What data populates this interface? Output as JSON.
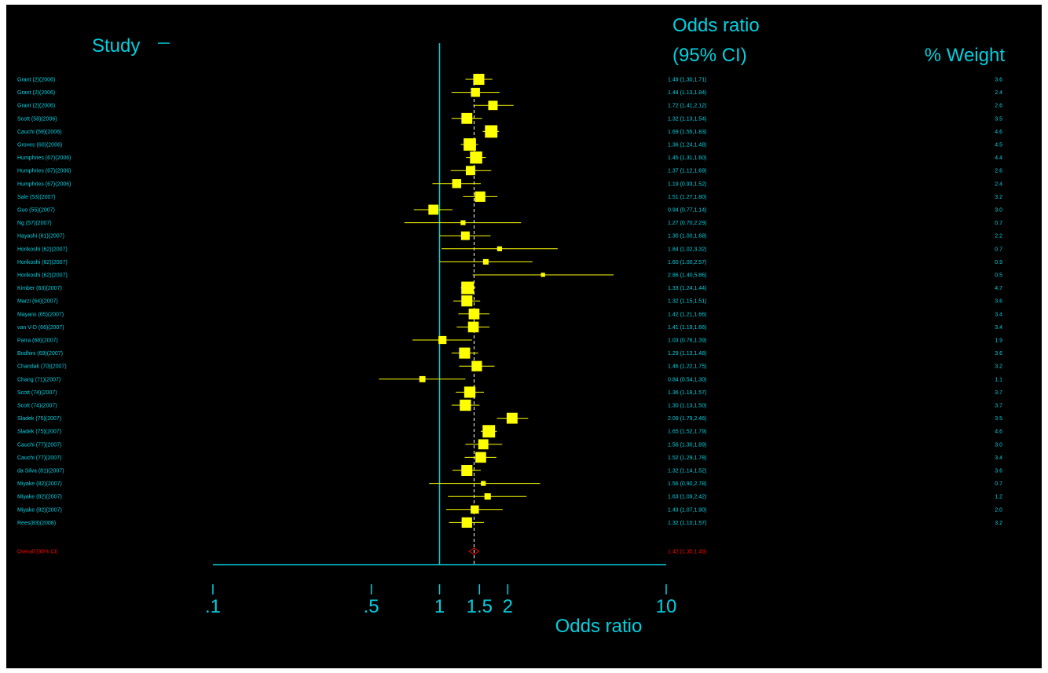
{
  "chart_data": {
    "type": "forest",
    "headers": {
      "study": "Study",
      "or_line1": "Odds ratio",
      "or_line2": "(95% CI)",
      "weight": "% Weight"
    },
    "xlabel": "Odds ratio",
    "xscale": "log",
    "xlim": [
      0.1,
      10
    ],
    "xticks": [
      0.1,
      0.5,
      1,
      1.5,
      2,
      10
    ],
    "xtick_labels": [
      ".1",
      ".5",
      "1",
      "1.5",
      "2",
      "10"
    ],
    "null_line": 1,
    "overall_line": 1.42,
    "studies": [
      {
        "name": "Grant (2)(2006)",
        "or": 1.49,
        "lo": 1.3,
        "hi": 1.71,
        "ci_text": "1.49 (1.30,1.71)",
        "weight": 3.6
      },
      {
        "name": "Grant (2)(2006)",
        "or": 1.44,
        "lo": 1.13,
        "hi": 1.84,
        "ci_text": "1.44 (1.13,1.84)",
        "weight": 2.4
      },
      {
        "name": "Grant (2)(2006)",
        "or": 1.72,
        "lo": 1.41,
        "hi": 2.12,
        "ci_text": "1.72 (1.41,2.12)",
        "weight": 2.6
      },
      {
        "name": "Scott (58)(2006)",
        "or": 1.32,
        "lo": 1.13,
        "hi": 1.54,
        "ci_text": "1.32 (1.13,1.54)",
        "weight": 3.5
      },
      {
        "name": "Cauchi (59)(2006)",
        "or": 1.69,
        "lo": 1.55,
        "hi": 1.83,
        "ci_text": "1.69 (1.55,1.83)",
        "weight": 4.6
      },
      {
        "name": "Groves (60)(2006)",
        "or": 1.36,
        "lo": 1.24,
        "hi": 1.48,
        "ci_text": "1.36 (1.24,1.48)",
        "weight": 4.5
      },
      {
        "name": "Humphries (67)(2006)",
        "or": 1.45,
        "lo": 1.31,
        "hi": 1.6,
        "ci_text": "1.45 (1.31,1.60)",
        "weight": 4.4
      },
      {
        "name": "Humphries (67)(2006)",
        "or": 1.37,
        "lo": 1.12,
        "hi": 1.69,
        "ci_text": "1.37 (1.12,1.69)",
        "weight": 2.6
      },
      {
        "name": "Humphries (67)(2006)",
        "or": 1.19,
        "lo": 0.93,
        "hi": 1.52,
        "ci_text": "1.19 (0.93,1.52)",
        "weight": 2.4
      },
      {
        "name": "Sale (53)(2007)",
        "or": 1.51,
        "lo": 1.27,
        "hi": 1.8,
        "ci_text": "1.51 (1.27,1.80)",
        "weight": 3.2
      },
      {
        "name": "Guo (55)(2007)",
        "or": 0.94,
        "lo": 0.77,
        "hi": 1.14,
        "ci_text": "0.94 (0.77,1.14)",
        "weight": 3.0
      },
      {
        "name": "Ng (57)(2007)",
        "or": 1.27,
        "lo": 0.7,
        "hi": 2.29,
        "ci_text": "1.27 (0.70,2.29)",
        "weight": 0.7
      },
      {
        "name": "Hayashi (61)(2007)",
        "or": 1.3,
        "lo": 1.0,
        "hi": 1.68,
        "ci_text": "1.30 (1.00,1.68)",
        "weight": 2.2
      },
      {
        "name": "Horikoshi (62)(2007)",
        "or": 1.84,
        "lo": 1.02,
        "hi": 3.32,
        "ci_text": "1.84 (1.02,3.32)",
        "weight": 0.7
      },
      {
        "name": "Horikoshi (62)(2007)",
        "or": 1.6,
        "lo": 1.0,
        "hi": 2.57,
        "ci_text": "1.60 (1.00,2.57)",
        "weight": 0.9
      },
      {
        "name": "Horikoshi (62)(2007)",
        "or": 2.86,
        "lo": 1.4,
        "hi": 5.86,
        "ci_text": "2.86 (1.40,5.86)",
        "weight": 0.5
      },
      {
        "name": "Kimber (63)(2007)",
        "or": 1.33,
        "lo": 1.24,
        "hi": 1.44,
        "ci_text": "1.33 (1.24,1.44)",
        "weight": 4.7
      },
      {
        "name": "Marzi (64)(2007)",
        "or": 1.32,
        "lo": 1.15,
        "hi": 1.51,
        "ci_text": "1.32 (1.15,1.51)",
        "weight": 3.6
      },
      {
        "name": "Mayans (65)(2007)",
        "or": 1.42,
        "lo": 1.21,
        "hi": 1.66,
        "ci_text": "1.42 (1.21,1.66)",
        "weight": 3.4
      },
      {
        "name": "van V-D (66)(2007)",
        "or": 1.41,
        "lo": 1.19,
        "hi": 1.66,
        "ci_text": "1.41 (1.19,1.66)",
        "weight": 3.4
      },
      {
        "name": "Parra (68)(2007)",
        "or": 1.03,
        "lo": 0.76,
        "hi": 1.39,
        "ci_text": "1.03 (0.76,1.39)",
        "weight": 1.9
      },
      {
        "name": "Bodhini (69)(2007)",
        "or": 1.29,
        "lo": 1.13,
        "hi": 1.48,
        "ci_text": "1.29 (1.13,1.48)",
        "weight": 3.6
      },
      {
        "name": "Chandak (70)(2007)",
        "or": 1.46,
        "lo": 1.22,
        "hi": 1.75,
        "ci_text": "1.46 (1.22,1.75)",
        "weight": 3.2
      },
      {
        "name": "Chang (71)(2007)",
        "or": 0.84,
        "lo": 0.54,
        "hi": 1.3,
        "ci_text": "0.84 (0.54,1.30)",
        "weight": 1.1
      },
      {
        "name": "Scott (74)(2007)",
        "or": 1.36,
        "lo": 1.18,
        "hi": 1.57,
        "ci_text": "1.36 (1.18,1.57)",
        "weight": 3.7
      },
      {
        "name": "Scott (74)(2007)",
        "or": 1.3,
        "lo": 1.13,
        "hi": 1.5,
        "ci_text": "1.30 (1.13,1.50)",
        "weight": 3.7
      },
      {
        "name": "Sladek (75)(2007)",
        "or": 2.09,
        "lo": 1.79,
        "hi": 2.46,
        "ci_text": "2.09 (1.79,2.46)",
        "weight": 3.5
      },
      {
        "name": "Sladek (75)(2007)",
        "or": 1.65,
        "lo": 1.52,
        "hi": 1.79,
        "ci_text": "1.65 (1.52,1.79)",
        "weight": 4.6
      },
      {
        "name": "Cauchi (77)(2007)",
        "or": 1.56,
        "lo": 1.3,
        "hi": 1.89,
        "ci_text": "1.56 (1.30,1.89)",
        "weight": 3.0
      },
      {
        "name": "Cauchi (77)(2007)",
        "or": 1.52,
        "lo": 1.29,
        "hi": 1.78,
        "ci_text": "1.52 (1.29,1.78)",
        "weight": 3.4
      },
      {
        "name": "da Silva (81)(2007)",
        "or": 1.32,
        "lo": 1.14,
        "hi": 1.52,
        "ci_text": "1.32 (1.14,1.52)",
        "weight": 3.6
      },
      {
        "name": "Miyake (82)(2007)",
        "or": 1.56,
        "lo": 0.9,
        "hi": 2.78,
        "ci_text": "1.56 (0.90,2.78)",
        "weight": 0.7
      },
      {
        "name": "Miyake (82)(2007)",
        "or": 1.63,
        "lo": 1.09,
        "hi": 2.42,
        "ci_text": "1.63 (1.09,2.42)",
        "weight": 1.2
      },
      {
        "name": "Miyake (82)(2007)",
        "or": 1.43,
        "lo": 1.07,
        "hi": 1.9,
        "ci_text": "1.43 (1.07,1.90)",
        "weight": 2.0
      },
      {
        "name": "Rees(83)(2008)",
        "or": 1.32,
        "lo": 1.1,
        "hi": 1.57,
        "ci_text": "1.32 (1.10,1.57)",
        "weight": 3.2
      }
    ],
    "overall": {
      "name": "Overall (95% CI)",
      "or": 1.42,
      "lo": 1.35,
      "hi": 1.49,
      "ci_text": "1.42 (1.35,1.49)"
    },
    "colors": {
      "background": "#000000",
      "text": "#00d0e0",
      "marker": "#ffff00",
      "overall": "#ff0000",
      "axis": "#00d0e0",
      "dashed_line": "#ffffff"
    }
  }
}
